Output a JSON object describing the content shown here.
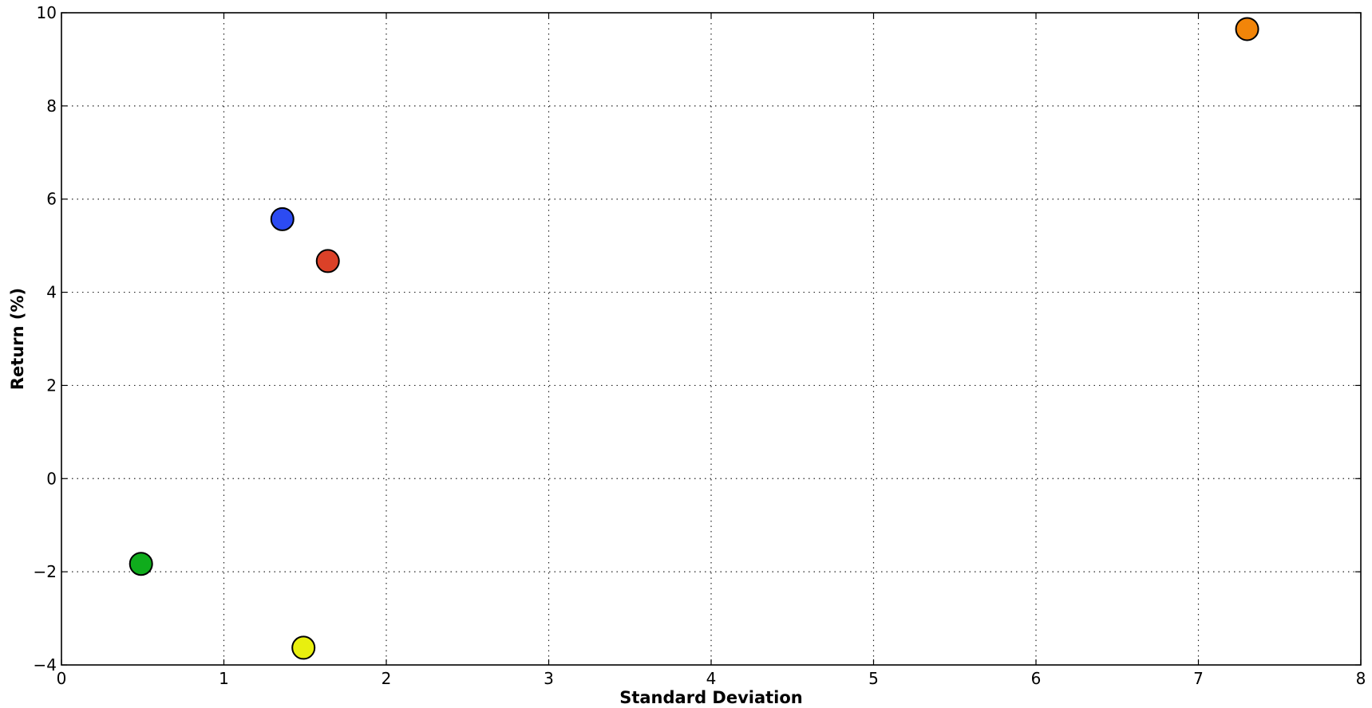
{
  "chart_data": {
    "type": "scatter",
    "title": "",
    "xlabel": "Standard Deviation",
    "ylabel": "Return (%)",
    "xlim": [
      0,
      8
    ],
    "ylim": [
      -4,
      10
    ],
    "xticks": [
      0,
      1,
      2,
      3,
      4,
      5,
      6,
      7,
      8
    ],
    "yticks": [
      -4,
      -2,
      0,
      2,
      4,
      6,
      8,
      10
    ],
    "xtick_labels": [
      "0",
      "1",
      "2",
      "3",
      "4",
      "5",
      "6",
      "7",
      "8"
    ],
    "ytick_labels": [
      "−4",
      "−2",
      "0",
      "2",
      "4",
      "6",
      "8",
      "10"
    ],
    "grid": true,
    "points": [
      {
        "x": 7.3,
        "y": 9.65,
        "color": "#f28509"
      },
      {
        "x": 1.36,
        "y": 5.57,
        "color": "#2c4bf2"
      },
      {
        "x": 1.64,
        "y": 4.67,
        "color": "#db4128"
      },
      {
        "x": 0.49,
        "y": -1.83,
        "color": "#0fac1c"
      },
      {
        "x": 1.49,
        "y": -3.63,
        "color": "#e8ef0f"
      }
    ]
  }
}
